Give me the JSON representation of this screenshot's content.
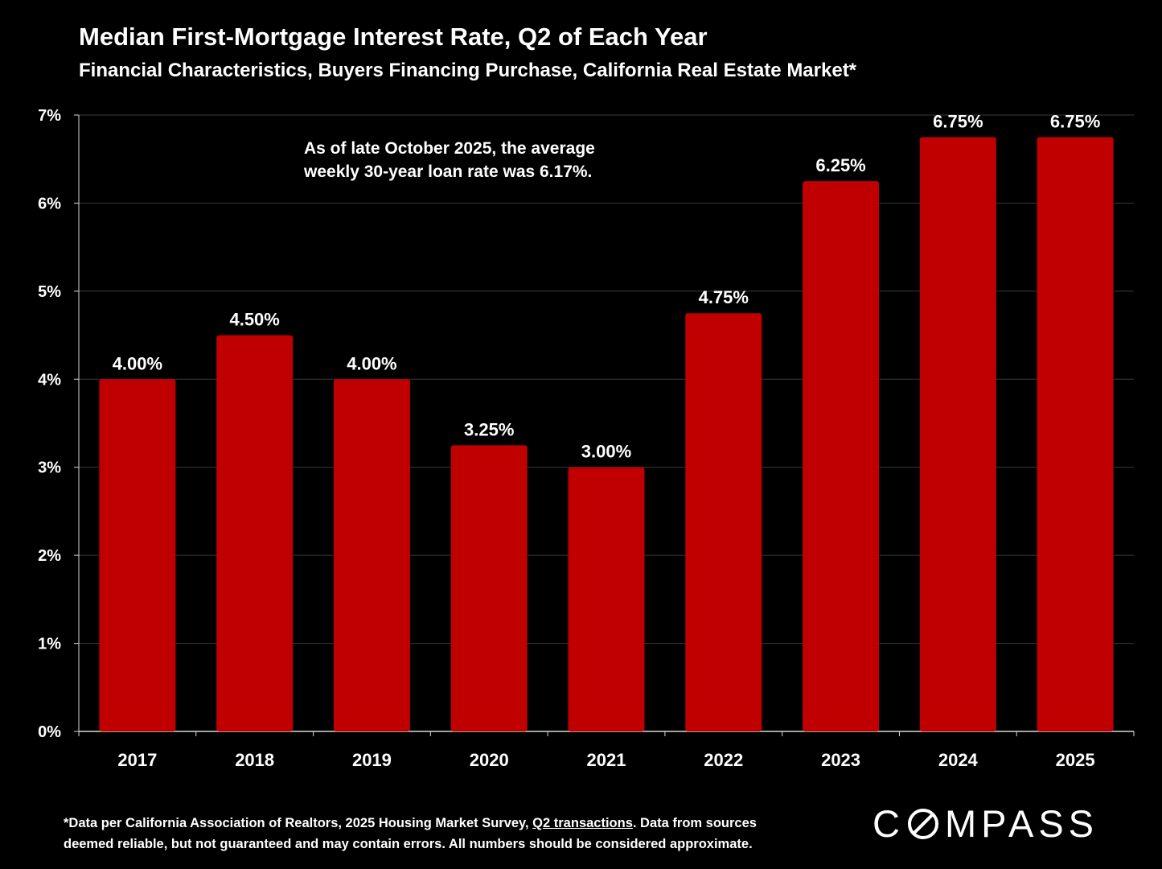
{
  "header": {
    "title": "Median First-Mortgage Interest Rate, Q2 of Each Year",
    "subtitle": "Financial Characteristics, Buyers Financing Purchase, California Real Estate Market*"
  },
  "annotation": {
    "line1": "As of late October 2025, the average",
    "line2": "weekly 30-year loan rate was 6.17%."
  },
  "footnote": {
    "part1": "*Data per California Association of Realtors, 2025 Housing Market Survey, ",
    "link": "Q2 transactions",
    "part2": ". Data from sources",
    "line2": "deemed reliable, but not guaranteed and may contain errors. All numbers should be considered approximate."
  },
  "logo": {
    "left": "C",
    "right": "MPASS"
  },
  "colors": {
    "bar": "#c00000",
    "background": "#000000",
    "gridline": "#3a3a3a",
    "text": "#ffffff"
  },
  "chart_data": {
    "type": "bar",
    "categories": [
      "2017",
      "2018",
      "2019",
      "2020",
      "2021",
      "2022",
      "2023",
      "2024",
      "2025"
    ],
    "values": [
      4.0,
      4.5,
      4.0,
      3.25,
      3.0,
      4.75,
      6.25,
      6.75,
      6.75
    ],
    "data_labels": [
      "4.00%",
      "4.50%",
      "4.00%",
      "3.25%",
      "3.00%",
      "4.75%",
      "6.25%",
      "6.75%",
      "6.75%"
    ],
    "ylim": [
      0,
      7
    ],
    "yticks": [
      0,
      1,
      2,
      3,
      4,
      5,
      6,
      7
    ],
    "ytick_labels": [
      "0%",
      "1%",
      "2%",
      "3%",
      "4%",
      "5%",
      "6%",
      "7%"
    ],
    "grid": true,
    "xlabel": "",
    "ylabel": ""
  }
}
